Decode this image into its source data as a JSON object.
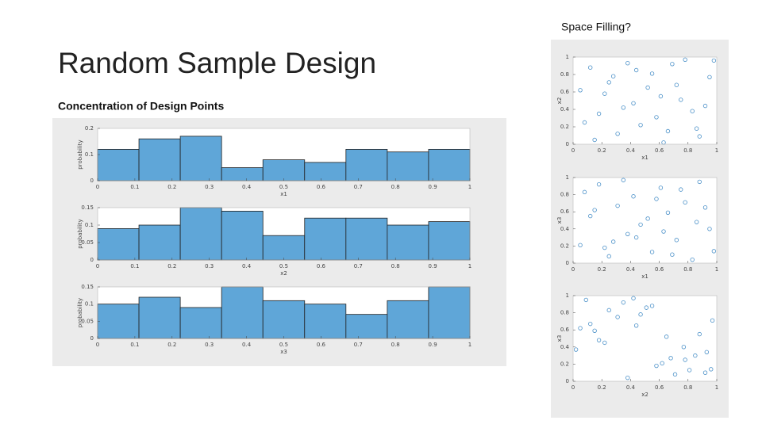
{
  "slide": {
    "title": "Random Sample Design",
    "subtitle": "Concentration of Design Points",
    "side_title": "Space Filling?"
  },
  "chart_data": [
    {
      "type": "histogram",
      "xlabel": "x1",
      "ylabel": "probability",
      "color": "#5fa6d8",
      "bins": [
        0,
        0.111,
        0.222,
        0.333,
        0.444,
        0.556,
        0.667,
        0.778,
        0.889,
        1
      ],
      "values": [
        0.12,
        0.16,
        0.17,
        0.05,
        0.08,
        0.07,
        0.12,
        0.11,
        0.12
      ],
      "xlim": [
        0,
        1
      ],
      "ylim": [
        0,
        0.2
      ],
      "xticks": [
        0,
        0.1,
        0.2,
        0.3,
        0.4,
        0.5,
        0.6,
        0.7,
        0.8,
        0.9,
        1
      ],
      "yticks": [
        0,
        0.1,
        0.2
      ]
    },
    {
      "type": "histogram",
      "xlabel": "x2",
      "ylabel": "probability",
      "color": "#5fa6d8",
      "bins": [
        0,
        0.111,
        0.222,
        0.333,
        0.444,
        0.556,
        0.667,
        0.778,
        0.889,
        1
      ],
      "values": [
        0.09,
        0.1,
        0.15,
        0.14,
        0.07,
        0.12,
        0.12,
        0.1,
        0.11
      ],
      "xlim": [
        0,
        1
      ],
      "ylim": [
        0,
        0.15
      ],
      "xticks": [
        0,
        0.1,
        0.2,
        0.3,
        0.4,
        0.5,
        0.6,
        0.7,
        0.8,
        0.9,
        1
      ],
      "yticks": [
        0,
        0.05,
        0.1,
        0.15
      ]
    },
    {
      "type": "histogram",
      "xlabel": "x3",
      "ylabel": "probability",
      "color": "#5fa6d8",
      "bins": [
        0,
        0.111,
        0.222,
        0.333,
        0.444,
        0.556,
        0.667,
        0.778,
        0.889,
        1
      ],
      "values": [
        0.1,
        0.12,
        0.09,
        0.15,
        0.11,
        0.1,
        0.07,
        0.11,
        0.15
      ],
      "xlim": [
        0,
        1
      ],
      "ylim": [
        0,
        0.15
      ],
      "xticks": [
        0,
        0.1,
        0.2,
        0.3,
        0.4,
        0.5,
        0.6,
        0.7,
        0.8,
        0.9,
        1
      ],
      "yticks": [
        0,
        0.05,
        0.1,
        0.15
      ]
    },
    {
      "type": "scatter",
      "xlabel": "x1",
      "ylabel": "x2",
      "color": "#4a90c8",
      "x": [
        0.05,
        0.12,
        0.18,
        0.25,
        0.31,
        0.38,
        0.42,
        0.47,
        0.55,
        0.61,
        0.66,
        0.72,
        0.78,
        0.83,
        0.88,
        0.95,
        0.08,
        0.15,
        0.22,
        0.35,
        0.44,
        0.52,
        0.58,
        0.69,
        0.75,
        0.86,
        0.92,
        0.28,
        0.63,
        0.98
      ],
      "values": [
        0.62,
        0.88,
        0.35,
        0.71,
        0.12,
        0.93,
        0.47,
        0.22,
        0.81,
        0.55,
        0.15,
        0.68,
        0.97,
        0.38,
        0.09,
        0.77,
        0.25,
        0.05,
        0.58,
        0.42,
        0.85,
        0.65,
        0.31,
        0.92,
        0.51,
        0.18,
        0.44,
        0.78,
        0.02,
        0.96
      ],
      "xlim": [
        0,
        1
      ],
      "ylim": [
        0,
        1
      ],
      "xticks": [
        0,
        0.2,
        0.4,
        0.6,
        0.8,
        1
      ],
      "yticks": [
        0,
        0.2,
        0.4,
        0.6,
        0.8,
        1
      ]
    },
    {
      "type": "scatter",
      "xlabel": "x1",
      "ylabel": "x3",
      "color": "#4a90c8",
      "x": [
        0.05,
        0.12,
        0.18,
        0.25,
        0.31,
        0.38,
        0.42,
        0.47,
        0.55,
        0.61,
        0.66,
        0.72,
        0.78,
        0.83,
        0.88,
        0.95,
        0.08,
        0.15,
        0.22,
        0.35,
        0.44,
        0.52,
        0.58,
        0.69,
        0.75,
        0.86,
        0.92,
        0.28,
        0.63,
        0.98
      ],
      "values": [
        0.21,
        0.55,
        0.92,
        0.08,
        0.67,
        0.34,
        0.78,
        0.45,
        0.13,
        0.88,
        0.59,
        0.27,
        0.71,
        0.04,
        0.95,
        0.4,
        0.83,
        0.62,
        0.18,
        0.97,
        0.3,
        0.52,
        0.75,
        0.1,
        0.86,
        0.48,
        0.65,
        0.25,
        0.37,
        0.14
      ],
      "xlim": [
        0,
        1
      ],
      "ylim": [
        0,
        1
      ],
      "xticks": [
        0,
        0.2,
        0.4,
        0.6,
        0.8,
        1
      ],
      "yticks": [
        0,
        0.2,
        0.4,
        0.6,
        0.8,
        1
      ]
    },
    {
      "type": "scatter",
      "xlabel": "x2",
      "ylabel": "x3",
      "color": "#4a90c8",
      "x": [
        0.62,
        0.88,
        0.35,
        0.71,
        0.12,
        0.93,
        0.47,
        0.22,
        0.81,
        0.55,
        0.15,
        0.68,
        0.97,
        0.38,
        0.09,
        0.77,
        0.25,
        0.05,
        0.58,
        0.42,
        0.85,
        0.65,
        0.31,
        0.92,
        0.51,
        0.18,
        0.44,
        0.78,
        0.02,
        0.96
      ],
      "values": [
        0.21,
        0.55,
        0.92,
        0.08,
        0.67,
        0.34,
        0.78,
        0.45,
        0.13,
        0.88,
        0.59,
        0.27,
        0.71,
        0.04,
        0.95,
        0.4,
        0.83,
        0.62,
        0.18,
        0.97,
        0.3,
        0.52,
        0.75,
        0.1,
        0.86,
        0.48,
        0.65,
        0.25,
        0.37,
        0.14
      ],
      "xlim": [
        0,
        1
      ],
      "ylim": [
        0,
        1
      ],
      "xticks": [
        0,
        0.2,
        0.4,
        0.6,
        0.8,
        1
      ],
      "yticks": [
        0,
        0.2,
        0.4,
        0.6,
        0.8,
        1
      ]
    }
  ]
}
